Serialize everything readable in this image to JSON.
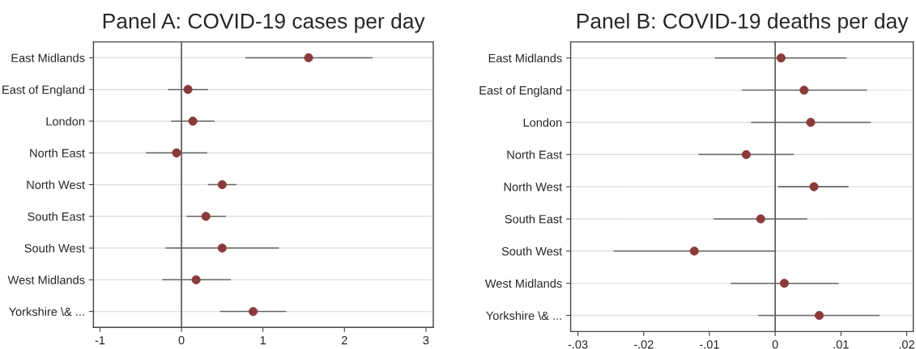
{
  "chart_data": [
    {
      "type": "scatter",
      "orientation": "horizontal",
      "title": "Panel A: COVID-19 cases per day",
      "categories": [
        "East Midlands",
        "East of England",
        "London",
        "North East",
        "North West",
        "South East",
        "South West",
        "West Midlands",
        "Yorkshire \\& ..."
      ],
      "values": [
        1.56,
        0.08,
        0.14,
        -0.06,
        0.5,
        0.3,
        0.5,
        0.18,
        0.88
      ],
      "errors": [
        [
          0.79,
          2.34
        ],
        [
          -0.16,
          0.32
        ],
        [
          -0.12,
          0.4
        ],
        [
          -0.43,
          0.31
        ],
        [
          0.33,
          0.67
        ],
        [
          0.07,
          0.54
        ],
        [
          -0.19,
          1.19
        ],
        [
          -0.23,
          0.6
        ],
        [
          0.48,
          1.28
        ]
      ],
      "color": "#8b3a3a",
      "marker": "circle",
      "xlim": [
        -1.08,
        3.09
      ],
      "xticks": [
        -1,
        0,
        1,
        2,
        3
      ],
      "ref_lines": [
        {
          "axis": "x",
          "value": 0,
          "color": "#555555"
        }
      ],
      "grid": "y",
      "legend": false
    },
    {
      "type": "scatter",
      "orientation": "horizontal",
      "title": "Panel B: COVID-19 deaths per day",
      "categories": [
        "East Midlands",
        "East of England",
        "London",
        "North East",
        "North West",
        "South East",
        "South West",
        "West Midlands",
        "Yorkshire \\& ..."
      ],
      "values": [
        0.0009,
        0.0044,
        0.0054,
        -0.0044,
        0.0059,
        -0.0022,
        -0.0123,
        0.0014,
        0.0067
      ],
      "errors": [
        [
          -0.0091,
          0.0108
        ],
        [
          -0.005,
          0.0139
        ],
        [
          -0.0036,
          0.0145
        ],
        [
          -0.0116,
          0.0028
        ],
        [
          0.0005,
          0.0111
        ],
        [
          -0.0093,
          0.0048
        ],
        [
          -0.0245,
          0.0
        ],
        [
          -0.0067,
          0.0096
        ],
        [
          -0.0025,
          0.0158
        ]
      ],
      "color": "#8b3a3a",
      "marker": "circle",
      "xlim": [
        -0.0311,
        0.021
      ],
      "xticks": [
        {
          "value": -0.03,
          "label": "-.03"
        },
        {
          "value": -0.02,
          "label": "-.02"
        },
        {
          "value": -0.01,
          "label": "-.01"
        },
        0,
        {
          "value": 0.01,
          "label": ".01"
        },
        {
          "value": 0.02,
          "label": ".02"
        }
      ],
      "ref_lines": [
        {
          "axis": "x",
          "value": 0,
          "color": "#555555"
        }
      ],
      "grid": "y",
      "legend": false
    }
  ]
}
